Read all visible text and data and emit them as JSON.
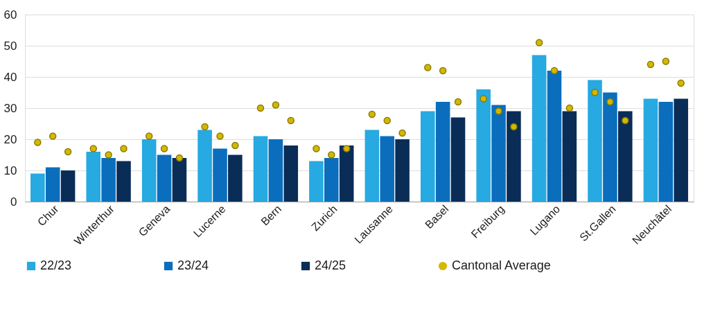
{
  "chart_data": {
    "type": "bar",
    "categories": [
      "Chur",
      "Winterthur",
      "Geneva",
      "Lucerne",
      "Bern",
      "Zurich",
      "Lausanne",
      "Basel",
      "Freiburg",
      "Lugano",
      "St.Gallen",
      "Neuchâtel"
    ],
    "series": [
      {
        "name": "22/23",
        "color": "#27a9e1",
        "values": [
          9,
          16,
          20,
          23,
          21,
          13,
          23,
          29,
          36,
          47,
          39,
          33
        ]
      },
      {
        "name": "23/24",
        "color": "#0a6ebd",
        "values": [
          11,
          14,
          15,
          17,
          20,
          14,
          21,
          32,
          31,
          42,
          35,
          32
        ]
      },
      {
        "name": "24/25",
        "color": "#0a2d57",
        "values": [
          10,
          13,
          14,
          15,
          18,
          18,
          20,
          27,
          29,
          29,
          29,
          33
        ]
      },
      {
        "name": "Cantonal Average",
        "type": "scatter",
        "color": "#d4b800",
        "marker": "circle",
        "x": [
          "Chur",
          "Chur",
          "Chur",
          "Winterthur",
          "Winterthur",
          "Winterthur",
          "Geneva",
          "Geneva",
          "Geneva",
          "Lucerne",
          "Lucerne",
          "Lucerne",
          "Bern",
          "Bern",
          "Bern",
          "Zurich",
          "Zurich",
          "Zurich",
          "Lausanne",
          "Lausanne",
          "Lausanne",
          "Basel",
          "Basel",
          "Basel",
          "Freiburg",
          "Freiburg",
          "Freiburg",
          "Lugano",
          "Lugano",
          "Lugano",
          "St.Gallen",
          "St.Gallen",
          "St.Gallen",
          "Neuchâtel",
          "Neuchâtel",
          "Neuchâtel"
        ],
        "values": [
          19,
          21,
          16,
          17,
          15,
          17,
          21,
          17,
          14,
          24,
          21,
          18,
          30,
          31,
          26,
          17,
          15,
          17,
          28,
          26,
          22,
          43,
          42,
          32,
          33,
          29,
          24,
          51,
          42,
          30,
          35,
          32,
          26,
          44,
          45,
          38
        ]
      }
    ],
    "ylim": [
      0,
      60
    ],
    "yticks": [
      0,
      10,
      20,
      30,
      40,
      50,
      60
    ],
    "grid": "y",
    "legend": "bottom"
  }
}
